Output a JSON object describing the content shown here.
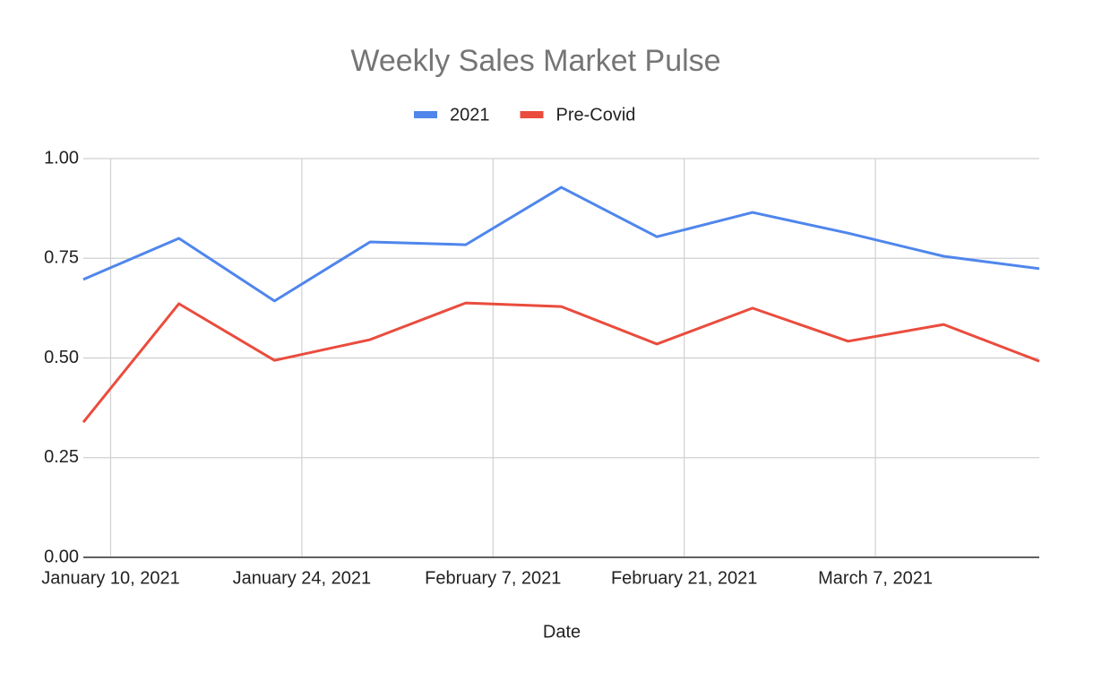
{
  "chart_data": {
    "type": "line",
    "title": "Weekly Sales Market Pulse",
    "x_label": "Date",
    "x": [
      "2021-01-08",
      "2021-01-15",
      "2021-01-22",
      "2021-01-29",
      "2021-02-05",
      "2021-02-12",
      "2021-02-19",
      "2021-02-26",
      "2021-03-05",
      "2021-03-12",
      "2021-03-19"
    ],
    "series": [
      {
        "name": "2021",
        "color": "#4f86ec",
        "values": [
          0.697,
          0.8,
          0.643,
          0.791,
          0.784,
          0.928,
          0.804,
          0.865,
          0.813,
          0.755,
          0.724
        ]
      },
      {
        "name": "Pre-Covid",
        "color": "#ea4c3d",
        "values": [
          0.339,
          0.636,
          0.494,
          0.546,
          0.638,
          0.629,
          0.535,
          0.625,
          0.542,
          0.584,
          0.492
        ]
      }
    ],
    "xlim": [
      "2021-01-08",
      "2021-03-19"
    ],
    "xticks": [
      {
        "value": "2021-01-10",
        "label": "January 10, 2021"
      },
      {
        "value": "2021-01-24",
        "label": "January 24, 2021"
      },
      {
        "value": "2021-02-07",
        "label": "February 7, 2021"
      },
      {
        "value": "2021-02-21",
        "label": "February 21, 2021"
      },
      {
        "value": "2021-03-07",
        "label": "March 7, 2021"
      }
    ],
    "ylim": [
      0,
      1
    ],
    "yticks": [
      {
        "value": 0,
        "label": "0.00"
      },
      {
        "value": 0.25,
        "label": "0.25"
      },
      {
        "value": 0.5,
        "label": "0.50"
      },
      {
        "value": 0.75,
        "label": "0.75"
      },
      {
        "value": 1,
        "label": "1.00"
      }
    ],
    "grid": true,
    "legend": "top"
  }
}
